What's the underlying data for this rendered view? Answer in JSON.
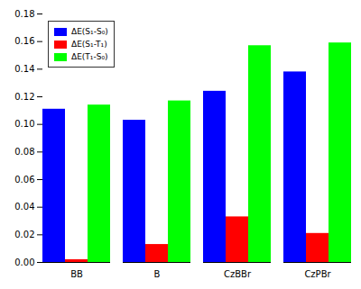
{
  "chart_data": {
    "type": "bar",
    "categories": [
      "BB",
      "B",
      "CzBBr",
      "CzPBr"
    ],
    "series": [
      {
        "name": "ΔE(S₁-S₀)",
        "color": "#0000ff",
        "values": [
          0.111,
          0.103,
          0.124,
          0.138
        ]
      },
      {
        "name": "ΔE(S₁-T₁)",
        "color": "#ff0000",
        "values": [
          0.002,
          0.013,
          0.033,
          0.021
        ]
      },
      {
        "name": "ΔE(T₁-S₀)",
        "color": "#00ff00",
        "values": [
          0.114,
          0.117,
          0.157,
          0.159
        ]
      }
    ],
    "ylim": [
      0.0,
      0.18
    ],
    "yticks": [
      {
        "value": 0.0,
        "label": "0.00"
      },
      0.02,
      0.04,
      0.06,
      0.08,
      {
        "value": 0.1,
        "label": "0.10"
      },
      0.12,
      0.14,
      0.16,
      0.18
    ],
    "legend": "upper left",
    "grid": false
  }
}
